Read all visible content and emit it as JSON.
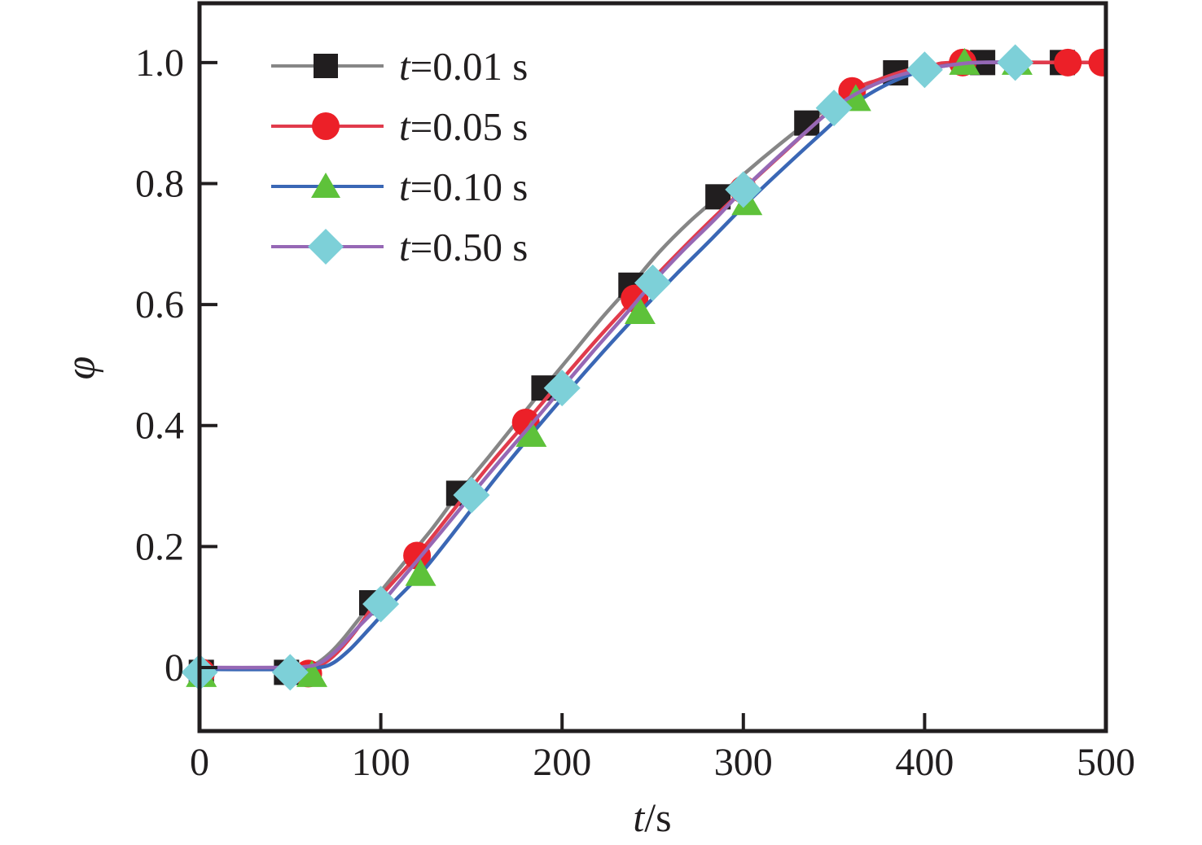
{
  "figure": {
    "ylabel": "φ",
    "xlabel_var": "t",
    "xlabel_rest": "/s"
  },
  "chart_data": {
    "type": "line",
    "title": "",
    "xlabel": "t/s",
    "ylabel": "φ",
    "xlim": [
      0,
      500
    ],
    "ylim": [
      -0.105,
      1.098
    ],
    "xticks": [
      0,
      100,
      200,
      300,
      400,
      500
    ],
    "xtick_labels": [
      "0",
      "100",
      "200",
      "300",
      "400",
      "500"
    ],
    "yticks": [
      0,
      0.2,
      0.4,
      0.6,
      0.8,
      1.0
    ],
    "ytick_labels": [
      "0",
      "0.2",
      "0.4",
      "0.6",
      "0.8",
      "1.0"
    ],
    "grid": false,
    "legend_position": "upper-left-inside",
    "frame_color": "#211e1f",
    "series": [
      {
        "name": "t=0.01 s",
        "label_var": "t",
        "label_rest": "=0.01 s",
        "time_step_s": 0.01,
        "marker": "square",
        "marker_color": "#211e1f",
        "line_color": "#868686",
        "markers_at": [
          [
            1,
            -0.008
          ],
          [
            48,
            -0.008
          ],
          [
            95,
            0.107
          ],
          [
            143,
            0.288
          ],
          [
            190,
            0.462
          ],
          [
            238,
            0.632
          ],
          [
            286,
            0.778
          ],
          [
            335,
            0.9
          ],
          [
            384,
            0.983
          ],
          [
            432,
            1.0
          ],
          [
            476,
            1.0
          ]
        ],
        "curve": [
          [
            0,
            -0.002
          ],
          [
            40,
            -0.002
          ],
          [
            56,
            0
          ],
          [
            64,
            0.006
          ],
          [
            72,
            0.024
          ],
          [
            80,
            0.05
          ],
          [
            95,
            0.107
          ],
          [
            112,
            0.17
          ],
          [
            128,
            0.228
          ],
          [
            143,
            0.288
          ],
          [
            160,
            0.35
          ],
          [
            175,
            0.406
          ],
          [
            190,
            0.462
          ],
          [
            206,
            0.52
          ],
          [
            222,
            0.578
          ],
          [
            238,
            0.632
          ],
          [
            254,
            0.688
          ],
          [
            270,
            0.736
          ],
          [
            286,
            0.778
          ],
          [
            302,
            0.82
          ],
          [
            318,
            0.86
          ],
          [
            335,
            0.9
          ],
          [
            350,
            0.932
          ],
          [
            364,
            0.956
          ],
          [
            384,
            0.983
          ],
          [
            398,
            0.993
          ],
          [
            412,
            0.998
          ],
          [
            428,
            1.0
          ],
          [
            476,
            1.0
          ]
        ]
      },
      {
        "name": "t=0.05 s",
        "label_var": "t",
        "label_rest": "=0.05 s",
        "time_step_s": 0.05,
        "marker": "circle",
        "marker_color": "#ec2028",
        "line_color": "#e13b4c",
        "markers_at": [
          [
            1,
            -0.008
          ],
          [
            60,
            -0.01
          ],
          [
            120,
            0.185
          ],
          [
            180,
            0.405
          ],
          [
            240,
            0.61
          ],
          [
            300,
            0.79
          ],
          [
            360,
            0.953
          ],
          [
            421,
            1.0
          ],
          [
            479,
            1.0
          ],
          [
            498,
            1.0
          ]
        ],
        "curve": [
          [
            0,
            -0.002
          ],
          [
            45,
            -0.002
          ],
          [
            60,
            0
          ],
          [
            68,
            0.006
          ],
          [
            76,
            0.025
          ],
          [
            86,
            0.06
          ],
          [
            100,
            0.118
          ],
          [
            120,
            0.185
          ],
          [
            140,
            0.26
          ],
          [
            160,
            0.335
          ],
          [
            180,
            0.405
          ],
          [
            200,
            0.476
          ],
          [
            220,
            0.545
          ],
          [
            240,
            0.61
          ],
          [
            260,
            0.673
          ],
          [
            280,
            0.733
          ],
          [
            300,
            0.79
          ],
          [
            320,
            0.845
          ],
          [
            340,
            0.9
          ],
          [
            360,
            0.953
          ],
          [
            375,
            0.972
          ],
          [
            390,
            0.987
          ],
          [
            405,
            0.996
          ],
          [
            420,
            1.0
          ],
          [
            500,
            1.0
          ]
        ]
      },
      {
        "name": "t=0.10 s",
        "label_var": "t",
        "label_rest": "=0.10 s",
        "time_step_s": 0.1,
        "marker": "triangle",
        "marker_color": "#5ec23a",
        "line_color": "#3a67b5",
        "markers_at": [
          [
            1,
            -0.012
          ],
          [
            62,
            -0.012
          ],
          [
            122,
            0.155
          ],
          [
            183,
            0.385
          ],
          [
            243,
            0.588
          ],
          [
            302,
            0.768
          ],
          [
            362,
            0.94
          ],
          [
            422,
            1.0
          ],
          [
            451,
            1.0
          ]
        ],
        "curve": [
          [
            0,
            -0.003
          ],
          [
            50,
            -0.003
          ],
          [
            66,
            0
          ],
          [
            74,
            0.008
          ],
          [
            83,
            0.03
          ],
          [
            94,
            0.065
          ],
          [
            107,
            0.108
          ],
          [
            122,
            0.155
          ],
          [
            142,
            0.23
          ],
          [
            162,
            0.308
          ],
          [
            183,
            0.385
          ],
          [
            203,
            0.455
          ],
          [
            223,
            0.523
          ],
          [
            243,
            0.588
          ],
          [
            263,
            0.65
          ],
          [
            283,
            0.71
          ],
          [
            302,
            0.768
          ],
          [
            322,
            0.825
          ],
          [
            342,
            0.88
          ],
          [
            362,
            0.933
          ],
          [
            380,
            0.965
          ],
          [
            396,
            0.984
          ],
          [
            412,
            0.995
          ],
          [
            432,
            1.0
          ],
          [
            452,
            1.0
          ]
        ]
      },
      {
        "name": "t=0.50 s",
        "label_var": "t",
        "label_rest": "=0.50 s",
        "time_step_s": 0.5,
        "marker": "diamond",
        "marker_color": "#7dd0d8",
        "line_color": "#9668b5",
        "markers_at": [
          [
            0,
            -0.008
          ],
          [
            50,
            -0.008
          ],
          [
            100,
            0.105
          ],
          [
            150,
            0.285
          ],
          [
            200,
            0.462
          ],
          [
            250,
            0.636
          ],
          [
            300,
            0.79
          ],
          [
            350,
            0.925
          ],
          [
            400,
            0.988
          ],
          [
            450,
            1.0
          ]
        ],
        "curve": [
          [
            0,
            0
          ],
          [
            45,
            0
          ],
          [
            60,
            0.002
          ],
          [
            68,
            0.01
          ],
          [
            78,
            0.035
          ],
          [
            88,
            0.068
          ],
          [
            100,
            0.105
          ],
          [
            116,
            0.162
          ],
          [
            133,
            0.223
          ],
          [
            150,
            0.285
          ],
          [
            167,
            0.346
          ],
          [
            184,
            0.405
          ],
          [
            200,
            0.462
          ],
          [
            217,
            0.522
          ],
          [
            234,
            0.58
          ],
          [
            250,
            0.636
          ],
          [
            267,
            0.69
          ],
          [
            284,
            0.74
          ],
          [
            300,
            0.79
          ],
          [
            317,
            0.838
          ],
          [
            334,
            0.884
          ],
          [
            350,
            0.925
          ],
          [
            365,
            0.953
          ],
          [
            380,
            0.973
          ],
          [
            395,
            0.986
          ],
          [
            410,
            0.994
          ],
          [
            428,
            1.0
          ],
          [
            450,
            1.0
          ]
        ]
      }
    ]
  }
}
